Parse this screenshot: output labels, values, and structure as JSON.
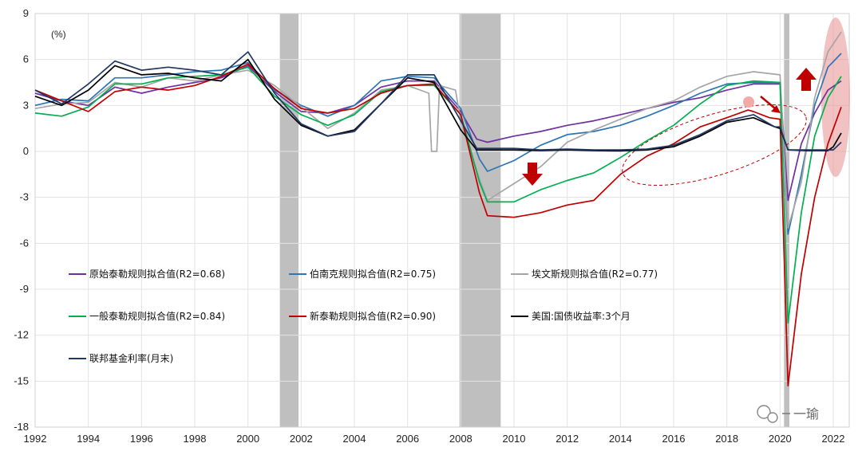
{
  "chart_data": {
    "type": "line",
    "unit_label": "(%)",
    "xlim": [
      1992,
      2022.6
    ],
    "ylim": [
      -18,
      9
    ],
    "x_ticks": [
      1992,
      1994,
      1996,
      1998,
      2000,
      2002,
      2004,
      2006,
      2008,
      2010,
      2012,
      2014,
      2016,
      2018,
      2020,
      2022
    ],
    "y_ticks": [
      9,
      6,
      3,
      0,
      -3,
      -6,
      -9,
      -12,
      -15,
      -18
    ],
    "recessions": [
      [
        2001.2,
        2001.9
      ],
      [
        2007.95,
        2009.5
      ],
      [
        2020.15,
        2020.35
      ]
    ],
    "series": [
      {
        "name": "原始泰勒规则拟合值(R2=0.68)",
        "color": "#7030a0",
        "points": [
          [
            1992,
            3.8
          ],
          [
            1993,
            3.3
          ],
          [
            1994,
            3.0
          ],
          [
            1995,
            4.2
          ],
          [
            1996,
            3.8
          ],
          [
            1997,
            4.2
          ],
          [
            1998,
            4.5
          ],
          [
            1999,
            4.8
          ],
          [
            2000,
            5.6
          ],
          [
            2001,
            3.9
          ],
          [
            2002,
            2.6
          ],
          [
            2003,
            2.5
          ],
          [
            2004,
            3.0
          ],
          [
            2005,
            4.2
          ],
          [
            2006,
            4.6
          ],
          [
            2007,
            4.6
          ],
          [
            2008,
            2.6
          ],
          [
            2008.6,
            0.8
          ],
          [
            2009,
            0.6
          ],
          [
            2010,
            1.0
          ],
          [
            2011,
            1.3
          ],
          [
            2012,
            1.7
          ],
          [
            2013,
            2.0
          ],
          [
            2014,
            2.4
          ],
          [
            2015,
            2.8
          ],
          [
            2016,
            3.2
          ],
          [
            2017,
            3.5
          ],
          [
            2018,
            4.0
          ],
          [
            2019,
            4.4
          ],
          [
            2020,
            4.4
          ],
          [
            2020.3,
            -3.2
          ],
          [
            2020.8,
            0.5
          ],
          [
            2021.3,
            2.5
          ],
          [
            2021.8,
            4.0
          ],
          [
            2022.3,
            4.6
          ]
        ]
      },
      {
        "name": "伯南克规则拟合值(R2=0.75)",
        "color": "#2e75b6",
        "points": [
          [
            1992,
            3.0
          ],
          [
            1993,
            3.4
          ],
          [
            1994,
            3.3
          ],
          [
            1995,
            4.8
          ],
          [
            1996,
            4.8
          ],
          [
            1997,
            5.0
          ],
          [
            1998,
            5.2
          ],
          [
            1999,
            5.3
          ],
          [
            2000,
            5.8
          ],
          [
            2001,
            4.0
          ],
          [
            2002,
            3.0
          ],
          [
            2003,
            2.3
          ],
          [
            2004,
            3.0
          ],
          [
            2005,
            4.6
          ],
          [
            2006,
            4.9
          ],
          [
            2007,
            4.8
          ],
          [
            2008,
            2.8
          ],
          [
            2008.7,
            -0.5
          ],
          [
            2009,
            -1.3
          ],
          [
            2010,
            -0.6
          ],
          [
            2011,
            0.4
          ],
          [
            2012,
            1.1
          ],
          [
            2013,
            1.3
          ],
          [
            2014,
            1.7
          ],
          [
            2015,
            2.3
          ],
          [
            2016,
            3.0
          ],
          [
            2017,
            3.8
          ],
          [
            2018,
            4.4
          ],
          [
            2019,
            4.5
          ],
          [
            2020,
            4.5
          ],
          [
            2020.3,
            -5.4
          ],
          [
            2020.8,
            -1.5
          ],
          [
            2021.3,
            3.0
          ],
          [
            2021.8,
            5.5
          ],
          [
            2022.3,
            6.4
          ]
        ]
      },
      {
        "name": "埃文斯规则拟合值(R2=0.77)",
        "color": "#a6a6a6",
        "points": [
          [
            1992,
            2.8
          ],
          [
            1993,
            3.1
          ],
          [
            1994,
            3.2
          ],
          [
            1995,
            4.5
          ],
          [
            1996,
            4.2
          ],
          [
            1997,
            4.8
          ],
          [
            1998,
            4.6
          ],
          [
            1999,
            5.0
          ],
          [
            2000,
            5.3
          ],
          [
            2001,
            4.3
          ],
          [
            2002,
            2.9
          ],
          [
            2003,
            1.5
          ],
          [
            2004,
            2.5
          ],
          [
            2005,
            4.0
          ],
          [
            2006,
            4.3
          ],
          [
            2006.8,
            3.8
          ],
          [
            2006.9,
            0.0
          ],
          [
            2007.1,
            0.0
          ],
          [
            2007.2,
            4.3
          ],
          [
            2007.8,
            4.0
          ],
          [
            2008,
            2.0
          ],
          [
            2008.7,
            -1.8
          ],
          [
            2009,
            -3.2
          ],
          [
            2010,
            -2.1
          ],
          [
            2011,
            -1.0
          ],
          [
            2012,
            0.6
          ],
          [
            2013,
            1.4
          ],
          [
            2014,
            2.1
          ],
          [
            2015,
            2.8
          ],
          [
            2016,
            3.3
          ],
          [
            2017,
            4.2
          ],
          [
            2018,
            4.9
          ],
          [
            2019,
            5.2
          ],
          [
            2020,
            5.0
          ],
          [
            2020.3,
            -5.0
          ],
          [
            2020.8,
            -2.0
          ],
          [
            2021.3,
            3.5
          ],
          [
            2021.8,
            6.5
          ],
          [
            2022.3,
            7.8
          ]
        ]
      },
      {
        "name": "一般泰勒规则拟合值(R2=0.84)",
        "color": "#00b050",
        "points": [
          [
            1992,
            2.5
          ],
          [
            1993,
            2.3
          ],
          [
            1994,
            2.9
          ],
          [
            1995,
            4.4
          ],
          [
            1996,
            4.4
          ],
          [
            1997,
            4.8
          ],
          [
            1998,
            4.9
          ],
          [
            1999,
            5.0
          ],
          [
            2000,
            5.5
          ],
          [
            2001,
            3.6
          ],
          [
            2002,
            2.4
          ],
          [
            2003,
            1.7
          ],
          [
            2004,
            2.4
          ],
          [
            2005,
            3.9
          ],
          [
            2006,
            4.3
          ],
          [
            2007,
            4.3
          ],
          [
            2008,
            2.4
          ],
          [
            2008.7,
            -2.0
          ],
          [
            2009,
            -3.3
          ],
          [
            2010,
            -3.3
          ],
          [
            2011,
            -2.5
          ],
          [
            2012,
            -1.9
          ],
          [
            2013,
            -1.4
          ],
          [
            2014,
            -0.4
          ],
          [
            2015,
            0.7
          ],
          [
            2016,
            1.7
          ],
          [
            2017,
            3.1
          ],
          [
            2018,
            4.3
          ],
          [
            2019,
            4.6
          ],
          [
            2020,
            4.5
          ],
          [
            2020.3,
            -11.2
          ],
          [
            2020.8,
            -4.0
          ],
          [
            2021.3,
            1.0
          ],
          [
            2021.8,
            3.5
          ],
          [
            2022.3,
            4.9
          ]
        ]
      },
      {
        "name": "新泰勒规则拟合值(R2=0.90)",
        "color": "#c00000",
        "points": [
          [
            1992,
            4.0
          ],
          [
            1993,
            3.3
          ],
          [
            1994,
            2.6
          ],
          [
            1995,
            3.9
          ],
          [
            1996,
            4.2
          ],
          [
            1997,
            4.0
          ],
          [
            1998,
            4.3
          ],
          [
            1999,
            4.9
          ],
          [
            2000,
            5.7
          ],
          [
            2001,
            4.1
          ],
          [
            2002,
            2.8
          ],
          [
            2003,
            2.5
          ],
          [
            2004,
            2.8
          ],
          [
            2005,
            3.8
          ],
          [
            2006,
            4.3
          ],
          [
            2007,
            4.4
          ],
          [
            2008,
            2.4
          ],
          [
            2008.7,
            -2.7
          ],
          [
            2009,
            -4.2
          ],
          [
            2010,
            -4.3
          ],
          [
            2011,
            -4.0
          ],
          [
            2012,
            -3.5
          ],
          [
            2013,
            -3.2
          ],
          [
            2014,
            -1.5
          ],
          [
            2015,
            -0.3
          ],
          [
            2016,
            0.5
          ],
          [
            2017,
            1.6
          ],
          [
            2018,
            2.2
          ],
          [
            2018.8,
            2.7
          ],
          [
            2019,
            2.6
          ],
          [
            2019.6,
            2.2
          ],
          [
            2020,
            2.1
          ],
          [
            2020.3,
            -15.3
          ],
          [
            2020.8,
            -8.0
          ],
          [
            2021.3,
            -3.0
          ],
          [
            2021.8,
            0.5
          ],
          [
            2022.3,
            2.9
          ]
        ]
      },
      {
        "name": "美国:国债收益率:3个月",
        "color": "#000000",
        "points": [
          [
            1992,
            3.6
          ],
          [
            1993,
            3.0
          ],
          [
            1994,
            4.0
          ],
          [
            1995,
            5.6
          ],
          [
            1996,
            5.0
          ],
          [
            1997,
            5.1
          ],
          [
            1998,
            4.8
          ],
          [
            1999,
            4.6
          ],
          [
            2000,
            6.0
          ],
          [
            2001,
            3.4
          ],
          [
            2002,
            1.7
          ],
          [
            2003,
            1.0
          ],
          [
            2004,
            1.4
          ],
          [
            2005,
            3.1
          ],
          [
            2006,
            4.8
          ],
          [
            2007,
            4.5
          ],
          [
            2008,
            1.4
          ],
          [
            2008.6,
            0.1
          ],
          [
            2009,
            0.1
          ],
          [
            2010,
            0.1
          ],
          [
            2011,
            0.05
          ],
          [
            2012,
            0.1
          ],
          [
            2013,
            0.05
          ],
          [
            2014,
            0.03
          ],
          [
            2015,
            0.1
          ],
          [
            2016,
            0.3
          ],
          [
            2017,
            1.0
          ],
          [
            2018,
            1.9
          ],
          [
            2019,
            2.2
          ],
          [
            2019.8,
            1.6
          ],
          [
            2020,
            1.5
          ],
          [
            2020.3,
            0.1
          ],
          [
            2021,
            0.05
          ],
          [
            2021.8,
            0.05
          ],
          [
            2022,
            0.3
          ],
          [
            2022.3,
            1.2
          ]
        ]
      },
      {
        "name": "联邦基金利率(月末)",
        "color": "#203864",
        "points": [
          [
            1992,
            4.0
          ],
          [
            1993,
            3.1
          ],
          [
            1994,
            4.4
          ],
          [
            1995,
            5.9
          ],
          [
            1996,
            5.3
          ],
          [
            1997,
            5.5
          ],
          [
            1998,
            5.3
          ],
          [
            1999,
            5.0
          ],
          [
            2000,
            6.5
          ],
          [
            2001,
            3.8
          ],
          [
            2002,
            1.8
          ],
          [
            2003,
            1.0
          ],
          [
            2004,
            1.3
          ],
          [
            2005,
            3.1
          ],
          [
            2006,
            5.0
          ],
          [
            2007,
            5.0
          ],
          [
            2008,
            2.0
          ],
          [
            2008.6,
            0.2
          ],
          [
            2009,
            0.2
          ],
          [
            2010,
            0.2
          ],
          [
            2011,
            0.1
          ],
          [
            2012,
            0.15
          ],
          [
            2013,
            0.1
          ],
          [
            2014,
            0.1
          ],
          [
            2015,
            0.15
          ],
          [
            2016,
            0.4
          ],
          [
            2017,
            1.1
          ],
          [
            2018,
            2.0
          ],
          [
            2019,
            2.4
          ],
          [
            2019.8,
            1.6
          ],
          [
            2020,
            1.6
          ],
          [
            2020.3,
            0.1
          ],
          [
            2021,
            0.1
          ],
          [
            2021.8,
            0.1
          ],
          [
            2022,
            0.1
          ],
          [
            2022.3,
            0.6
          ]
        ]
      }
    ],
    "legend_cols": [
      [
        0
      ],
      [
        1
      ],
      [
        2
      ]
    ],
    "legend_rows": 3
  },
  "watermark": {
    "text": "一瑜"
  }
}
